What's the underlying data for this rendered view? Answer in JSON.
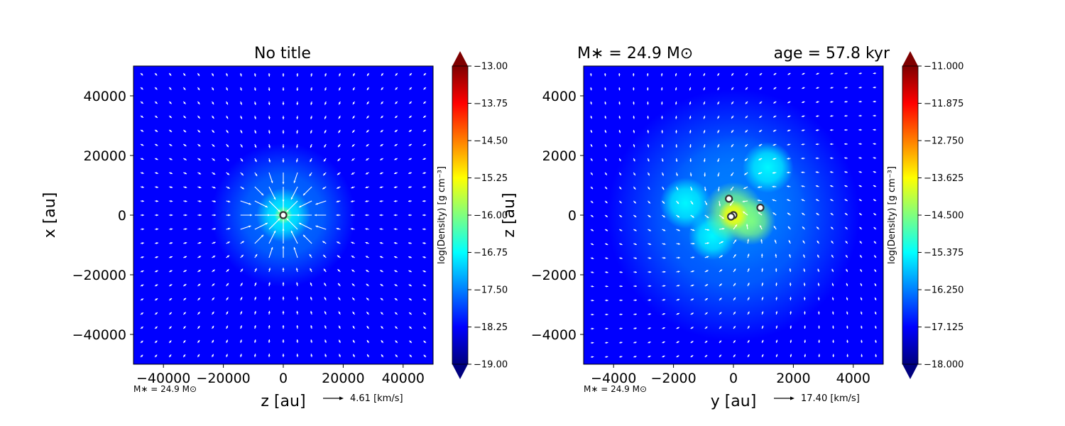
{
  "figure": {
    "background": "#ffffff",
    "colormap": [
      "#00007f",
      "#0000ff",
      "#007fff",
      "#00ffff",
      "#7fff7f",
      "#ffff00",
      "#ff7f00",
      "#ff0000",
      "#7f0000"
    ]
  },
  "chart_data": [
    {
      "type": "heatmap",
      "title": "No title",
      "xlabel": "z [au]",
      "ylabel": "x [au]",
      "xlim": [
        -50000,
        50000
      ],
      "ylim": [
        -50000,
        50000
      ],
      "xticks": [
        -40000,
        -20000,
        0,
        20000,
        40000
      ],
      "yticks": [
        -40000,
        -20000,
        0,
        20000,
        40000
      ],
      "xtick_labels": [
        "−40000",
        "−20000",
        "0",
        "20000",
        "40000"
      ],
      "ytick_labels": [
        "−40000",
        "−20000",
        "0",
        "20000",
        "40000"
      ],
      "colorbar": {
        "label": "log(Density) [g cm⁻³]",
        "vmin": -19.0,
        "vmax": -13.0,
        "ticks": [
          "−13.00",
          "−13.75",
          "−14.50",
          "−15.25",
          "−16.00",
          "−16.75",
          "−17.50",
          "−18.25",
          "−19.00"
        ]
      },
      "density_blobs": [
        {
          "x": 0,
          "y": 0,
          "r": 24000,
          "value": 0.22
        },
        {
          "x": 0,
          "y": 0,
          "r": 9000,
          "value": 0.33
        },
        {
          "x": 0,
          "y": 0,
          "r": 3000,
          "value": 0.45
        }
      ],
      "quiver": {
        "pattern": "radial-infall",
        "grid": 21
      },
      "sinks": [
        {
          "x": 0,
          "y": 0
        }
      ],
      "annotations": {
        "mass": "M∗ = 24.9 M⊙",
        "velocity_key": "4.61 [km/s]"
      }
    },
    {
      "type": "heatmap",
      "title_left": "M∗ = 24.9 M⊙",
      "title_right": "age = 57.8 kyr",
      "xlabel": "y [au]",
      "ylabel": "z [au]",
      "xlim": [
        -5000,
        5000
      ],
      "ylim": [
        -5000,
        5000
      ],
      "xticks": [
        -4000,
        -2000,
        0,
        2000,
        4000
      ],
      "yticks": [
        -4000,
        -2000,
        0,
        2000,
        4000
      ],
      "xtick_labels": [
        "−4000",
        "−2000",
        "0",
        "2000",
        "4000"
      ],
      "ytick_labels": [
        "−4000",
        "−2000",
        "0",
        "2000",
        "4000"
      ],
      "colorbar": {
        "label": "log(Density) [g cm⁻³]",
        "vmin": -18.0,
        "vmax": -11.0,
        "ticks": [
          "−11.000",
          "−11.875",
          "−12.750",
          "−13.625",
          "−14.500",
          "−15.375",
          "−16.250",
          "−17.125",
          "−18.000"
        ]
      },
      "density_blobs": [
        {
          "x": 0,
          "y": 0,
          "r": 4200,
          "value": 0.2
        },
        {
          "x": 100,
          "y": 400,
          "r": 2300,
          "value": 0.3
        },
        {
          "x": 1150,
          "y": 1600,
          "r": 850,
          "value": 0.4
        },
        {
          "x": -1600,
          "y": 400,
          "r": 850,
          "value": 0.4
        },
        {
          "x": -700,
          "y": -700,
          "r": 800,
          "value": 0.42
        },
        {
          "x": 600,
          "y": -200,
          "r": 800,
          "value": 0.45
        },
        {
          "x": 0,
          "y": 100,
          "r": 1000,
          "value": 0.5
        },
        {
          "x": 0,
          "y": 0,
          "r": 500,
          "value": 0.58
        }
      ],
      "quiver": {
        "pattern": "rotational-infall",
        "grid": 21
      },
      "sinks": [
        {
          "x": -150,
          "y": 550
        },
        {
          "x": 900,
          "y": 250
        },
        {
          "x": 0,
          "y": 0
        },
        {
          "x": -80,
          "y": -50
        }
      ],
      "annotations": {
        "mass": "M∗ = 24.9 M⊙",
        "velocity_key": "17.40 [km/s]"
      }
    }
  ]
}
